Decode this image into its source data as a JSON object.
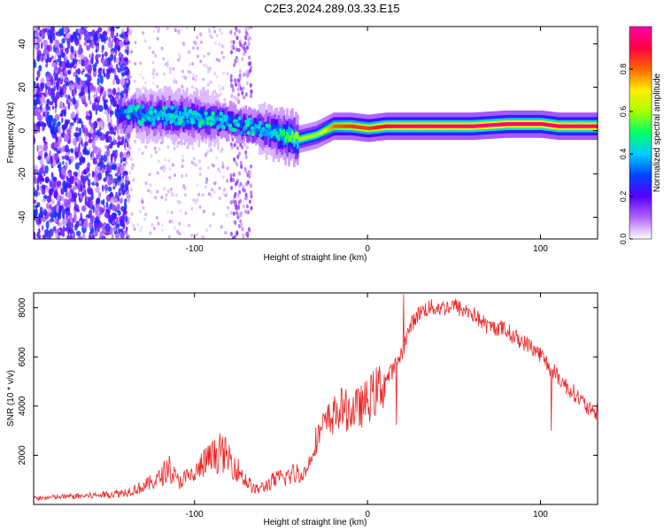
{
  "page_title": "C2E3.2024.289.03.33.E15",
  "chart_data": [
    {
      "type": "heatmap",
      "title": "C2E3.2024.289.03.33.E15",
      "xlabel": "Height of straight line (km)",
      "ylabel": "Frequency (Hz)",
      "xlim": [
        -193,
        133
      ],
      "ylim": [
        -50,
        48
      ],
      "x_ticks": [
        -100,
        0,
        100
      ],
      "x_tick_labels": [
        "-100",
        "0",
        "100"
      ],
      "y_ticks": [
        -40,
        -20,
        0,
        20,
        40
      ],
      "y_tick_labels": [
        "-40",
        "-20",
        "0",
        "20",
        "40"
      ],
      "colorbar": {
        "label": "Normalized spectral amplitude",
        "range": [
          0,
          1
        ],
        "ticks": [
          0.0,
          0.2,
          0.4,
          0.6,
          0.8
        ],
        "tick_labels": [
          "0.0",
          "0.2",
          "0.4",
          "0.6",
          "0.8"
        ],
        "colormap": [
          "#ffffff",
          "#b266ff",
          "#5500ff",
          "#0044ff",
          "#00ccff",
          "#00ff66",
          "#aaff00",
          "#ffee00",
          "#ff6600",
          "#ff0044",
          "#ff00aa"
        ]
      },
      "ridge": {
        "x": [
          -145,
          -130,
          -115,
          -100,
          -90,
          -80,
          -70,
          -60,
          -50,
          -40,
          -30,
          -20,
          -10,
          0,
          10,
          20,
          40,
          60,
          80,
          100,
          110,
          120,
          133
        ],
        "freq": [
          8,
          7,
          7,
          6,
          5,
          4,
          2,
          0,
          -2,
          -4,
          -2,
          2,
          2,
          1,
          2,
          2,
          2,
          2,
          3,
          3,
          2,
          2,
          2
        ],
        "peak_amplitude": [
          0.3,
          0.35,
          0.4,
          0.4,
          0.35,
          0.3,
          0.3,
          0.35,
          0.5,
          0.6,
          0.6,
          0.8,
          0.85,
          0.85,
          0.9,
          0.95,
          0.95,
          0.95,
          0.95,
          0.95,
          0.95,
          0.95,
          0.95
        ]
      }
    },
    {
      "type": "line",
      "xlabel": "Height of straight line (km)",
      "ylabel": "SNR (10 * v/v)",
      "xlim": [
        -193,
        133
      ],
      "ylim": [
        0,
        8600
      ],
      "x_ticks": [
        -100,
        0,
        100
      ],
      "x_tick_labels": [
        "-100",
        "0",
        "100"
      ],
      "y_ticks": [
        2000,
        4000,
        6000,
        8000
      ],
      "y_tick_labels": [
        "2000",
        "4000",
        "6000",
        "8000"
      ],
      "line_color": "#ee2222",
      "series": [
        {
          "x": [
            -193,
            -180,
            -170,
            -160,
            -150,
            -140,
            -130,
            -120,
            -115,
            -110,
            -105,
            -100,
            -95,
            -90,
            -85,
            -80,
            -75,
            -70,
            -65,
            -60,
            -55,
            -50,
            -45,
            -40,
            -35,
            -30,
            -25,
            -20,
            -15,
            -10,
            -5,
            0,
            5,
            10,
            15,
            20,
            25,
            30,
            35,
            40,
            45,
            50,
            55,
            60,
            65,
            70,
            75,
            80,
            85,
            90,
            95,
            100,
            105,
            110,
            115,
            120,
            125,
            130,
            133
          ],
          "values": [
            200,
            250,
            280,
            300,
            350,
            420,
            600,
            900,
            1300,
            800,
            900,
            1000,
            1400,
            1600,
            1800,
            1600,
            1200,
            800,
            500,
            600,
            800,
            900,
            1000,
            1100,
            1400,
            2600,
            3200,
            3600,
            3900,
            3800,
            3900,
            4200,
            4600,
            5000,
            5500,
            6200,
            7300,
            7800,
            8000,
            8000,
            8000,
            8100,
            7900,
            7800,
            7500,
            7200,
            7200,
            7100,
            6800,
            6600,
            6400,
            6100,
            5600,
            5200,
            4800,
            4500,
            4100,
            3700,
            3800
          ]
        }
      ]
    }
  ]
}
